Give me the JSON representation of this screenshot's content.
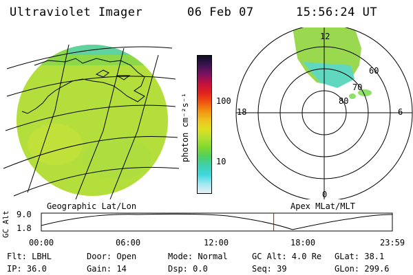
{
  "header": {
    "instrument": "Ultraviolet Imager",
    "date": "06 Feb 07",
    "time": "15:56:24 UT"
  },
  "colorbar": {
    "unit_label": "photon cm⁻²s⁻¹",
    "ticks": [
      "100",
      "10"
    ],
    "scale": "log",
    "colors": [
      "#101028",
      "#3a1450",
      "#7a1060",
      "#c01040",
      "#e02020",
      "#f05010",
      "#f09010",
      "#f0c020",
      "#e0e020",
      "#b0e030",
      "#80d830",
      "#50d060",
      "#40d0b0",
      "#40d8e0",
      "#a0e8f0",
      "#e8f0f4"
    ]
  },
  "left_panel": {
    "caption": "Geographic Lat/Lon",
    "main_color": "#b4de3c"
  },
  "right_panel": {
    "caption": "Apex MLat/MLT",
    "mlt_labels": {
      "top": "12",
      "left": "18",
      "right": "6",
      "bottom": "0"
    },
    "lat_labels": [
      "60",
      "70",
      "80"
    ]
  },
  "altitude_plot": {
    "ylabel": "GC Alt",
    "yticks": [
      "9.0",
      "1.8"
    ],
    "xticks": [
      "00:00",
      "06:00",
      "12:00",
      "18:00",
      "23:59"
    ],
    "current_time_fraction": 0.662,
    "marker_color": "#cc0000"
  },
  "status": {
    "flt": "Flt: LBHL",
    "ip": "IP: 36.0",
    "door": "Door: Open",
    "gain": "Gain: 14",
    "mode": "Mode: Normal",
    "dsp": "Dsp:    0.0",
    "gc_alt": "GC Alt: 4.0 Re",
    "seq": "Seq: 39",
    "glat": "GLat:  38.1",
    "glon": "GLon: 299.6"
  }
}
